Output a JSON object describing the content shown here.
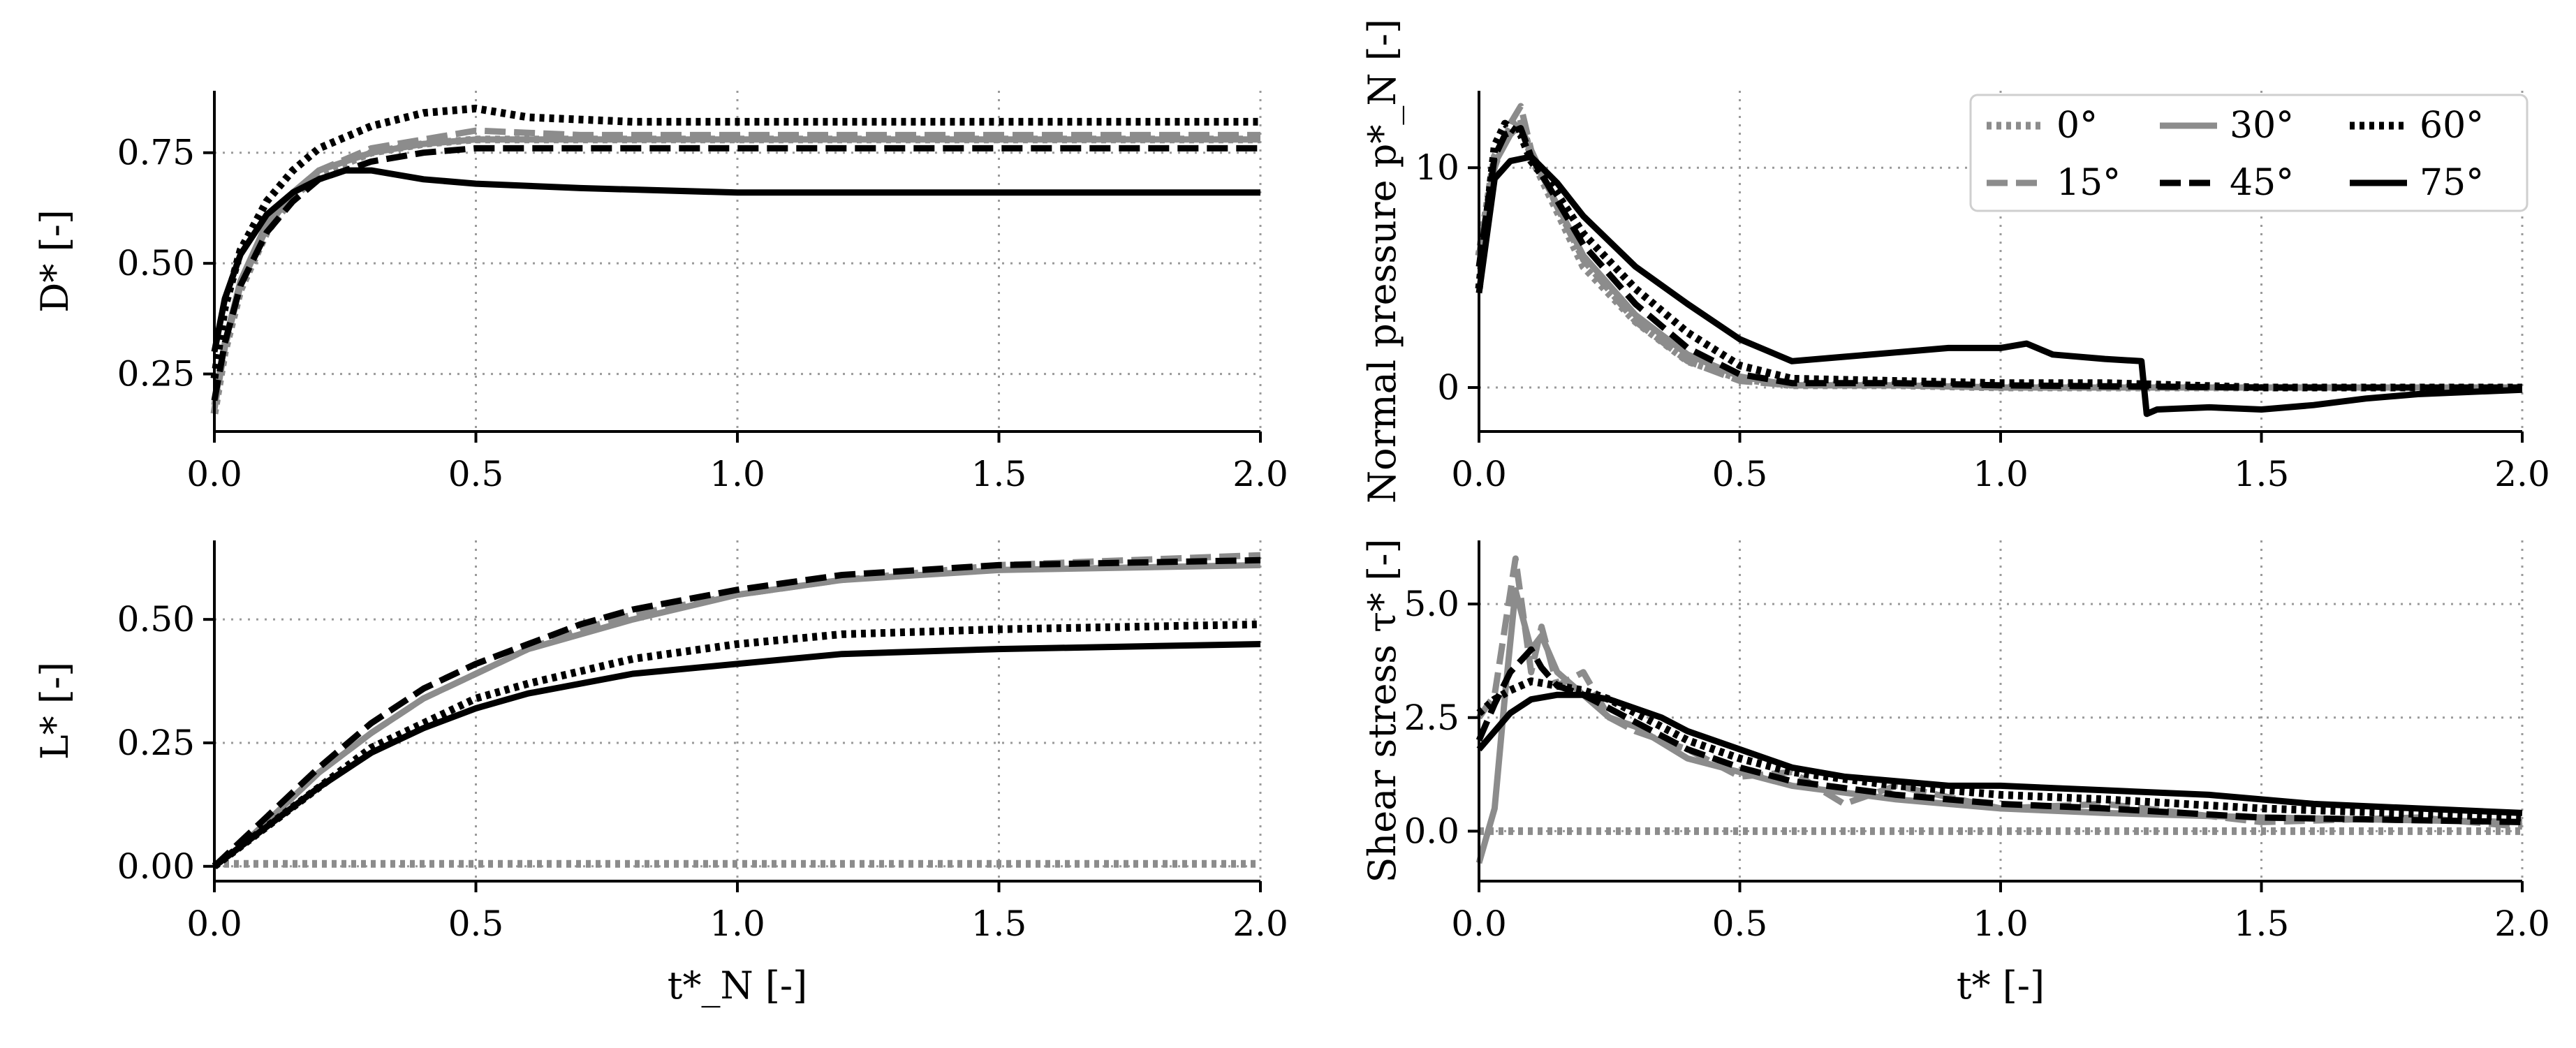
{
  "styles": {
    "0°": {
      "color": "#8c8c8c",
      "dash": "dot"
    },
    "15°": {
      "color": "#8c8c8c",
      "dash": "dash"
    },
    "30°": {
      "color": "#8c8c8c",
      "dash": "solid"
    },
    "45°": {
      "color": "#000000",
      "dash": "dash"
    },
    "60°": {
      "color": "#000000",
      "dash": "dot"
    },
    "75°": {
      "color": "#000000",
      "dash": "solid"
    }
  },
  "legend": {
    "placement": "top-right of normal pressure panel",
    "entries": [
      "0°",
      "30°",
      "60°",
      "15°",
      "45°",
      "75°"
    ]
  },
  "chart_data": [
    {
      "id": "d_star",
      "type": "line",
      "title": "",
      "xlabel": "",
      "ylabel": "D* [-]",
      "xlim": [
        0,
        2.0
      ],
      "ylim": [
        0.12,
        0.89
      ],
      "xticks": [
        "0.0",
        "0.5",
        "1.0",
        "1.5",
        "2.0"
      ],
      "yticks": [
        "0.25",
        "0.50",
        "0.75"
      ],
      "series": [
        {
          "name": "0°",
          "x": [
            0,
            0.02,
            0.05,
            0.1,
            0.15,
            0.2,
            0.3,
            0.4,
            0.5,
            0.7,
            1.0,
            1.5,
            2.0
          ],
          "y": [
            0.16,
            0.3,
            0.44,
            0.57,
            0.65,
            0.7,
            0.75,
            0.77,
            0.78,
            0.78,
            0.78,
            0.78,
            0.78
          ]
        },
        {
          "name": "15°",
          "x": [
            0,
            0.02,
            0.05,
            0.1,
            0.15,
            0.2,
            0.3,
            0.4,
            0.5,
            0.7,
            1.0,
            1.5,
            2.0
          ],
          "y": [
            0.17,
            0.31,
            0.45,
            0.58,
            0.66,
            0.71,
            0.76,
            0.78,
            0.8,
            0.79,
            0.79,
            0.79,
            0.79
          ]
        },
        {
          "name": "30°",
          "x": [
            0,
            0.02,
            0.05,
            0.1,
            0.15,
            0.2,
            0.3,
            0.4,
            0.5,
            0.7,
            1.0,
            1.5,
            2.0
          ],
          "y": [
            0.18,
            0.32,
            0.46,
            0.59,
            0.66,
            0.71,
            0.75,
            0.77,
            0.78,
            0.78,
            0.78,
            0.78,
            0.78
          ]
        },
        {
          "name": "45°",
          "x": [
            0,
            0.02,
            0.05,
            0.1,
            0.15,
            0.2,
            0.3,
            0.4,
            0.5,
            0.7,
            1.0,
            1.5,
            2.0
          ],
          "y": [
            0.19,
            0.32,
            0.45,
            0.57,
            0.64,
            0.69,
            0.73,
            0.75,
            0.76,
            0.76,
            0.76,
            0.76,
            0.76
          ]
        },
        {
          "name": "60°",
          "x": [
            0,
            0.02,
            0.05,
            0.1,
            0.15,
            0.2,
            0.3,
            0.4,
            0.5,
            0.6,
            0.8,
            1.0,
            1.5,
            2.0
          ],
          "y": [
            0.24,
            0.4,
            0.53,
            0.64,
            0.71,
            0.76,
            0.81,
            0.84,
            0.85,
            0.83,
            0.82,
            0.82,
            0.82,
            0.82
          ]
        },
        {
          "name": "75°",
          "x": [
            0,
            0.02,
            0.05,
            0.1,
            0.15,
            0.2,
            0.25,
            0.3,
            0.35,
            0.4,
            0.5,
            0.7,
            1.0,
            1.5,
            2.0
          ],
          "y": [
            0.3,
            0.42,
            0.52,
            0.61,
            0.66,
            0.69,
            0.71,
            0.71,
            0.7,
            0.69,
            0.68,
            0.67,
            0.66,
            0.66,
            0.66
          ]
        }
      ]
    },
    {
      "id": "l_star",
      "type": "line",
      "title": "",
      "xlabel": "t*_N [-]",
      "ylabel": "L* [-]",
      "xlim": [
        0,
        2.0
      ],
      "ylim": [
        -0.03,
        0.66
      ],
      "xticks": [
        "0.0",
        "0.5",
        "1.0",
        "1.5",
        "2.0"
      ],
      "yticks": [
        "0.00",
        "0.25",
        "0.50"
      ],
      "series": [
        {
          "name": "0°",
          "x": [
            0,
            0.5,
            1.0,
            1.5,
            2.0
          ],
          "y": [
            0.005,
            0.005,
            0.005,
            0.005,
            0.005
          ]
        },
        {
          "name": "15°",
          "x": [
            0,
            0.05,
            0.1,
            0.2,
            0.3,
            0.4,
            0.5,
            0.6,
            0.7,
            0.8,
            1.0,
            1.2,
            1.5,
            2.0
          ],
          "y": [
            0.0,
            0.04,
            0.09,
            0.19,
            0.27,
            0.34,
            0.39,
            0.44,
            0.48,
            0.51,
            0.55,
            0.58,
            0.61,
            0.63
          ]
        },
        {
          "name": "30°",
          "x": [
            0,
            0.05,
            0.1,
            0.2,
            0.3,
            0.4,
            0.5,
            0.6,
            0.7,
            0.8,
            1.0,
            1.2,
            1.5,
            2.0
          ],
          "y": [
            0.0,
            0.04,
            0.09,
            0.19,
            0.27,
            0.34,
            0.39,
            0.44,
            0.47,
            0.5,
            0.55,
            0.58,
            0.6,
            0.61
          ]
        },
        {
          "name": "45°",
          "x": [
            0,
            0.05,
            0.1,
            0.2,
            0.3,
            0.4,
            0.5,
            0.6,
            0.7,
            0.8,
            1.0,
            1.2,
            1.5,
            2.0
          ],
          "y": [
            0.0,
            0.05,
            0.1,
            0.2,
            0.29,
            0.36,
            0.41,
            0.45,
            0.49,
            0.52,
            0.56,
            0.59,
            0.61,
            0.62
          ]
        },
        {
          "name": "60°",
          "x": [
            0,
            0.05,
            0.1,
            0.2,
            0.3,
            0.4,
            0.5,
            0.6,
            0.8,
            1.0,
            1.2,
            1.5,
            2.0
          ],
          "y": [
            0.0,
            0.04,
            0.08,
            0.16,
            0.24,
            0.29,
            0.34,
            0.37,
            0.42,
            0.45,
            0.47,
            0.48,
            0.49
          ]
        },
        {
          "name": "75°",
          "x": [
            0,
            0.05,
            0.1,
            0.2,
            0.3,
            0.4,
            0.5,
            0.6,
            0.8,
            1.0,
            1.2,
            1.5,
            2.0
          ],
          "y": [
            0.0,
            0.04,
            0.08,
            0.16,
            0.23,
            0.28,
            0.32,
            0.35,
            0.39,
            0.41,
            0.43,
            0.44,
            0.45
          ]
        }
      ]
    },
    {
      "id": "normal_pressure",
      "type": "line",
      "title": "",
      "xlabel": "",
      "ylabel": "Normal pressure p*_N [-]",
      "xlim": [
        0,
        2.0
      ],
      "ylim": [
        -2.0,
        13.5
      ],
      "xticks": [
        "0.0",
        "0.5",
        "1.0",
        "1.5",
        "2.0"
      ],
      "yticks": [
        "0",
        "10"
      ],
      "series": [
        {
          "name": "0°",
          "x": [
            0,
            0.03,
            0.06,
            0.08,
            0.1,
            0.15,
            0.2,
            0.3,
            0.4,
            0.5,
            0.6,
            0.8,
            1.0,
            1.5,
            2.0
          ],
          "y": [
            6.0,
            10.5,
            11.8,
            12.2,
            10.5,
            8.0,
            5.5,
            3.0,
            1.2,
            0.4,
            0.1,
            0.1,
            0.0,
            0.0,
            0.0
          ]
        },
        {
          "name": "15°",
          "x": [
            0,
            0.03,
            0.06,
            0.08,
            0.1,
            0.15,
            0.2,
            0.3,
            0.4,
            0.5,
            0.6,
            0.8,
            1.0,
            1.5,
            2.0
          ],
          "y": [
            5.5,
            10.0,
            12.0,
            12.8,
            10.8,
            8.2,
            5.8,
            3.0,
            1.2,
            0.3,
            0.1,
            0.1,
            0.0,
            0.0,
            0.0
          ]
        },
        {
          "name": "30°",
          "x": [
            0,
            0.03,
            0.06,
            0.08,
            0.1,
            0.15,
            0.2,
            0.3,
            0.4,
            0.5,
            0.6,
            0.8,
            1.0,
            1.5,
            2.0
          ],
          "y": [
            6.0,
            10.2,
            11.5,
            12.0,
            10.6,
            8.3,
            6.0,
            3.3,
            1.5,
            0.5,
            0.1,
            0.1,
            0.0,
            0.0,
            0.0
          ]
        },
        {
          "name": "45°",
          "x": [
            0,
            0.03,
            0.05,
            0.08,
            0.1,
            0.15,
            0.2,
            0.3,
            0.4,
            0.5,
            0.6,
            0.8,
            1.0,
            1.5,
            2.0
          ],
          "y": [
            5.5,
            10.5,
            11.5,
            11.8,
            10.5,
            8.5,
            6.5,
            3.8,
            1.8,
            0.6,
            0.2,
            0.2,
            0.1,
            0.0,
            0.0
          ]
        },
        {
          "name": "60°",
          "x": [
            0,
            0.03,
            0.05,
            0.08,
            0.1,
            0.15,
            0.2,
            0.3,
            0.4,
            0.5,
            0.6,
            0.8,
            1.0,
            1.2,
            1.5,
            2.0
          ],
          "y": [
            4.5,
            11.0,
            12.0,
            11.5,
            10.3,
            8.8,
            7.0,
            4.5,
            2.5,
            1.0,
            0.4,
            0.3,
            0.2,
            0.2,
            0.0,
            0.0
          ]
        },
        {
          "name": "75°",
          "x": [
            0,
            0.03,
            0.06,
            0.1,
            0.15,
            0.2,
            0.3,
            0.4,
            0.5,
            0.55,
            0.6,
            0.7,
            0.8,
            0.9,
            1.0,
            1.05,
            1.1,
            1.2,
            1.27,
            1.28,
            1.3,
            1.4,
            1.5,
            1.6,
            1.7,
            1.8,
            2.0
          ],
          "y": [
            4.3,
            9.5,
            10.3,
            10.5,
            9.3,
            7.8,
            5.5,
            3.8,
            2.2,
            1.7,
            1.2,
            1.4,
            1.6,
            1.8,
            1.8,
            2.0,
            1.5,
            1.3,
            1.2,
            -1.2,
            -1.0,
            -0.9,
            -1.0,
            -0.8,
            -0.5,
            -0.3,
            -0.1
          ]
        }
      ]
    },
    {
      "id": "shear_stress",
      "type": "line",
      "title": "",
      "xlabel": "t* [-]",
      "ylabel": "Shear stress τ* [-]",
      "xlim": [
        0,
        2.0
      ],
      "ylim": [
        -1.1,
        6.4
      ],
      "xticks": [
        "0.0",
        "0.5",
        "1.0",
        "1.5",
        "2.0"
      ],
      "yticks": [
        "0.0",
        "2.5",
        "5.0"
      ],
      "series": [
        {
          "name": "0°",
          "x": [
            0,
            0.5,
            1.0,
            1.5,
            2.0
          ],
          "y": [
            0.0,
            0.0,
            0.0,
            0.0,
            0.0
          ]
        },
        {
          "name": "15°",
          "x": [
            0,
            0.03,
            0.05,
            0.07,
            0.1,
            0.12,
            0.15,
            0.2,
            0.25,
            0.3,
            0.4,
            0.5,
            0.6,
            0.7,
            0.8,
            1.0,
            1.2,
            1.5,
            1.8,
            2.0
          ],
          "y": [
            2.5,
            3.0,
            4.5,
            6.0,
            3.5,
            4.5,
            3.2,
            3.5,
            2.5,
            2.2,
            1.8,
            1.2,
            1.3,
            0.6,
            1.0,
            0.5,
            0.6,
            0.2,
            0.3,
            0.1
          ]
        },
        {
          "name": "30°",
          "x": [
            0,
            0.03,
            0.05,
            0.07,
            0.1,
            0.12,
            0.15,
            0.2,
            0.25,
            0.3,
            0.4,
            0.5,
            0.6,
            0.8,
            1.0,
            1.2,
            1.5,
            2.0
          ],
          "y": [
            -0.7,
            0.5,
            3.0,
            5.3,
            4.0,
            4.3,
            3.5,
            3.0,
            2.5,
            2.3,
            1.6,
            1.3,
            1.0,
            0.7,
            0.5,
            0.4,
            0.3,
            0.2
          ]
        },
        {
          "name": "45°",
          "x": [
            0,
            0.03,
            0.06,
            0.1,
            0.12,
            0.15,
            0.2,
            0.25,
            0.3,
            0.4,
            0.5,
            0.6,
            0.8,
            1.0,
            1.2,
            1.5,
            2.0
          ],
          "y": [
            2.0,
            2.8,
            3.5,
            4.0,
            3.6,
            3.2,
            3.0,
            2.7,
            2.4,
            1.8,
            1.4,
            1.1,
            0.8,
            0.6,
            0.5,
            0.3,
            0.2
          ]
        },
        {
          "name": "60°",
          "x": [
            0,
            0.03,
            0.06,
            0.1,
            0.15,
            0.2,
            0.25,
            0.3,
            0.4,
            0.5,
            0.6,
            0.8,
            1.0,
            1.2,
            1.5,
            2.0
          ],
          "y": [
            2.6,
            2.9,
            3.1,
            3.3,
            3.2,
            3.1,
            2.9,
            2.6,
            2.0,
            1.6,
            1.3,
            1.0,
            0.8,
            0.7,
            0.5,
            0.3
          ]
        },
        {
          "name": "75°",
          "x": [
            0,
            0.03,
            0.06,
            0.1,
            0.15,
            0.2,
            0.25,
            0.3,
            0.35,
            0.4,
            0.5,
            0.6,
            0.7,
            0.8,
            0.9,
            1.0,
            1.2,
            1.4,
            1.6,
            1.8,
            2.0
          ],
          "y": [
            1.8,
            2.2,
            2.6,
            2.9,
            3.0,
            3.0,
            2.9,
            2.7,
            2.5,
            2.2,
            1.8,
            1.4,
            1.2,
            1.1,
            1.0,
            1.0,
            0.9,
            0.8,
            0.6,
            0.5,
            0.4
          ]
        }
      ]
    }
  ]
}
